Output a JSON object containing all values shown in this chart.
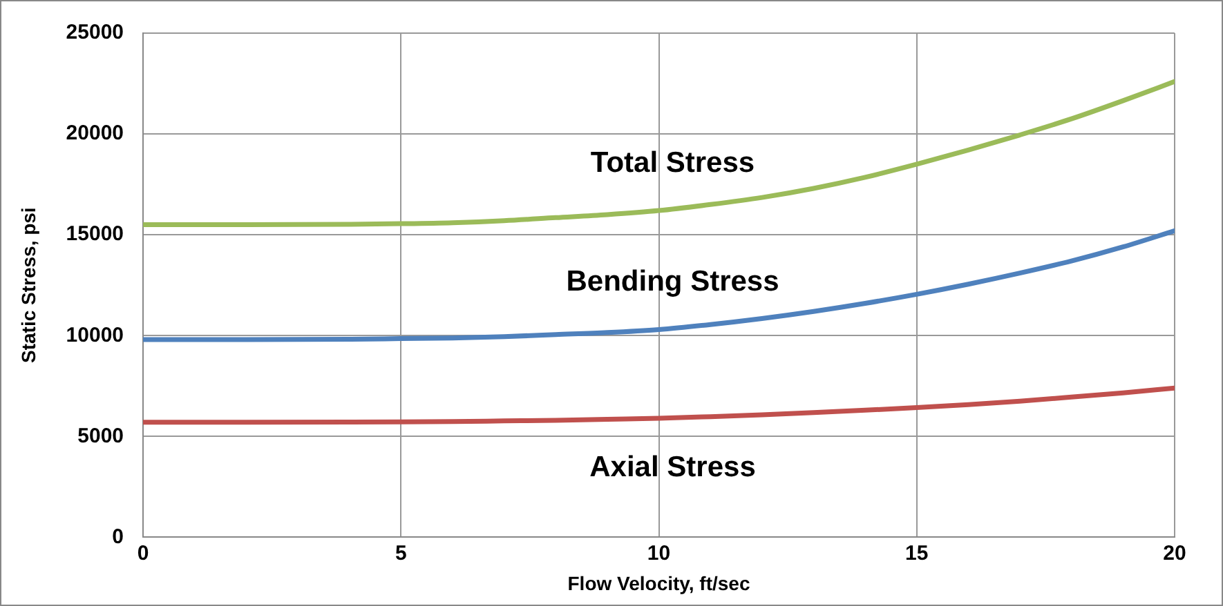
{
  "chart_data": {
    "type": "line",
    "xlabel": "Flow Velocity, ft/sec",
    "ylabel": "Static Stress, psi",
    "x": [
      0,
      2,
      4,
      5,
      6,
      7,
      8,
      9,
      10,
      11,
      12,
      13,
      14,
      15,
      16,
      17,
      18,
      19,
      20
    ],
    "series": [
      {
        "name": "Total Stress",
        "color": "#9bbb59",
        "values": [
          15500,
          15500,
          15520,
          15550,
          15600,
          15700,
          15850,
          16000,
          16200,
          16500,
          16850,
          17300,
          17850,
          18500,
          19200,
          19950,
          20750,
          21650,
          22600
        ]
      },
      {
        "name": "Bending Stress",
        "color": "#4f81bd",
        "values": [
          9800,
          9800,
          9820,
          9850,
          9880,
          9950,
          10050,
          10150,
          10300,
          10550,
          10850,
          11200,
          11600,
          12050,
          12550,
          13100,
          13700,
          14400,
          15200
        ]
      },
      {
        "name": "Axial Stress",
        "color": "#c0504d",
        "values": [
          5700,
          5700,
          5710,
          5720,
          5740,
          5770,
          5800,
          5850,
          5900,
          5980,
          6070,
          6180,
          6300,
          6430,
          6580,
          6750,
          6950,
          7160,
          7400
        ]
      }
    ],
    "xlim": [
      0,
      20
    ],
    "xticks": [
      0,
      5,
      10,
      15,
      20
    ],
    "ylim": [
      0,
      25000
    ],
    "yticks": [
      0,
      5000,
      10000,
      15000,
      20000,
      25000
    ],
    "grid": true,
    "legend": false,
    "marker": "none",
    "line_style": "solid"
  }
}
